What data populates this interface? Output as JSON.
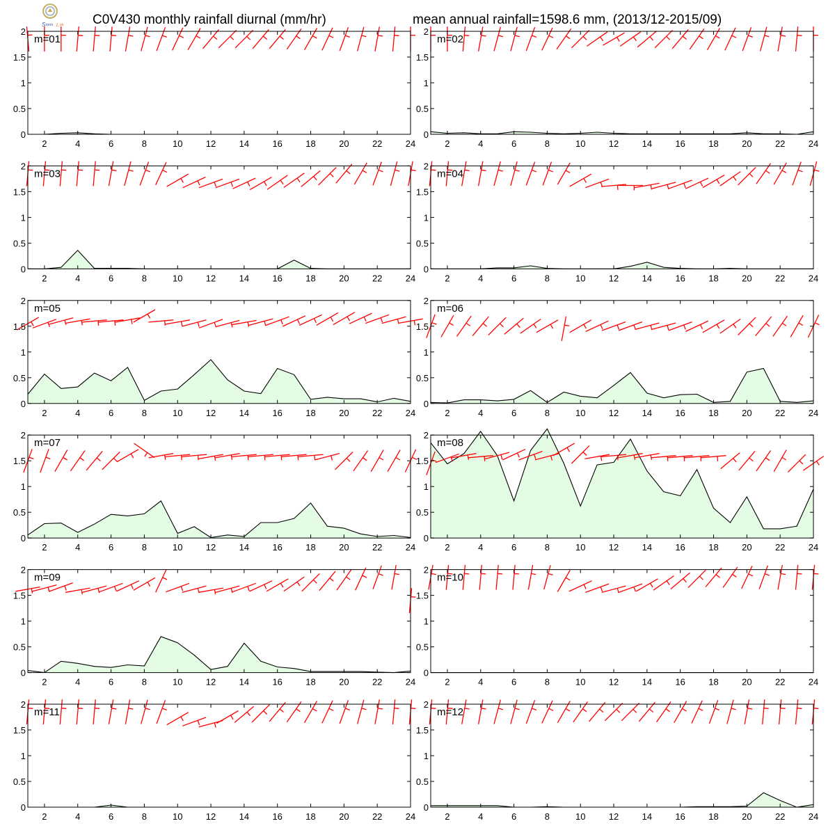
{
  "header": {
    "title_left": "C0V430 monthly rainfall diurnal (mm/hr)",
    "title_right": "mean annual rainfall=1598.6 mm, (2013/12-2015/09)"
  },
  "colors": {
    "rain_fill": "#e4fce4",
    "rain_line": "#000000",
    "wind_barb": "#ff0000"
  },
  "chart_data": {
    "type": "area",
    "x_ticks": [
      2,
      4,
      6,
      8,
      10,
      12,
      14,
      16,
      18,
      20,
      22,
      24
    ],
    "y_ticks": [
      0,
      0.5,
      1,
      1.5,
      2
    ],
    "y_tick_labels": [
      "0",
      "0.5",
      "1",
      "1.5",
      "2"
    ],
    "xlim": [
      1,
      24
    ],
    "ylim": [
      0,
      2
    ],
    "hours": [
      1,
      2,
      3,
      4,
      5,
      6,
      7,
      8,
      9,
      10,
      11,
      12,
      13,
      14,
      15,
      16,
      17,
      18,
      19,
      20,
      21,
      22,
      23,
      24
    ],
    "panels": [
      {
        "label": "m=01",
        "rain": [
          0,
          0,
          0.02,
          0.03,
          0.01,
          0,
          0,
          0,
          0,
          0,
          0,
          0,
          0,
          0,
          0,
          0,
          0,
          0,
          0,
          0,
          0,
          0,
          0,
          0
        ],
        "barb_dir": [
          355,
          0,
          0,
          5,
          5,
          5,
          10,
          15,
          20,
          25,
          30,
          40,
          45,
          45,
          40,
          40,
          35,
          30,
          25,
          20,
          15,
          10,
          5,
          0
        ],
        "barb_y": [
          1.85,
          1.85,
          1.85,
          1.85,
          1.85,
          1.85,
          1.85,
          1.85,
          1.85,
          1.85,
          1.85,
          1.85,
          1.85,
          1.85,
          1.85,
          1.85,
          1.85,
          1.85,
          1.85,
          1.85,
          1.85,
          1.85,
          1.85,
          1.85
        ]
      },
      {
        "label": "m=02",
        "rain": [
          0.05,
          0.02,
          0.03,
          0.01,
          0.01,
          0.05,
          0.04,
          0.02,
          0.01,
          0.02,
          0.04,
          0.02,
          0.01,
          0.01,
          0.01,
          0.01,
          0.01,
          0.01,
          0.01,
          0.03,
          0.01,
          0.01,
          0,
          0.05
        ],
        "barb_dir": [
          0,
          0,
          5,
          10,
          15,
          15,
          20,
          25,
          35,
          45,
          55,
          60,
          55,
          50,
          45,
          40,
          35,
          30,
          25,
          20,
          15,
          10,
          5,
          0
        ],
        "barb_y": [
          1.85,
          1.85,
          1.85,
          1.85,
          1.85,
          1.85,
          1.85,
          1.85,
          1.85,
          1.85,
          1.85,
          1.85,
          1.85,
          1.85,
          1.85,
          1.85,
          1.85,
          1.85,
          1.85,
          1.85,
          1.85,
          1.85,
          1.85,
          1.85
        ]
      },
      {
        "label": "m=03",
        "rain": [
          0,
          0,
          0.03,
          0.36,
          0.01,
          0.01,
          0.01,
          0,
          0,
          0,
          0,
          0,
          0,
          0,
          0,
          0,
          0.17,
          0.01,
          0,
          0,
          0,
          0,
          0,
          0
        ],
        "barb_dir": [
          5,
          5,
          5,
          5,
          5,
          10,
          15,
          20,
          25,
          60,
          65,
          70,
          70,
          65,
          60,
          55,
          55,
          50,
          45,
          40,
          30,
          20,
          15,
          10
        ],
        "barb_y": [
          1.85,
          1.85,
          1.85,
          1.85,
          1.85,
          1.85,
          1.85,
          1.85,
          1.85,
          1.72,
          1.68,
          1.66,
          1.66,
          1.66,
          1.66,
          1.68,
          1.72,
          1.75,
          1.8,
          1.85,
          1.85,
          1.85,
          1.85,
          1.85
        ]
      },
      {
        "label": "m=04",
        "rain": [
          0,
          0,
          0,
          0,
          0.02,
          0.02,
          0.06,
          0.01,
          0,
          0,
          0,
          0,
          0.05,
          0.13,
          0.03,
          0.01,
          0,
          0,
          0.01,
          0,
          0,
          0,
          0,
          0
        ],
        "barb_dir": [
          5,
          5,
          10,
          10,
          15,
          15,
          20,
          20,
          30,
          60,
          70,
          85,
          90,
          80,
          75,
          70,
          65,
          60,
          55,
          45,
          35,
          30,
          20,
          15
        ],
        "barb_y": [
          1.85,
          1.85,
          1.85,
          1.85,
          1.85,
          1.85,
          1.85,
          1.85,
          1.85,
          1.72,
          1.66,
          1.62,
          1.62,
          1.62,
          1.62,
          1.64,
          1.66,
          1.7,
          1.75,
          1.8,
          1.85,
          1.85,
          1.85,
          1.85
        ]
      },
      {
        "label": "m=05",
        "rain": [
          0.18,
          0.57,
          0.29,
          0.32,
          0.59,
          0.44,
          0.7,
          0.06,
          0.24,
          0.28,
          0.56,
          0.85,
          0.46,
          0.24,
          0.19,
          0.68,
          0.56,
          0.08,
          0.12,
          0.09,
          0.09,
          0.03,
          0.1,
          0.04
        ],
        "barb_dir": [
          60,
          70,
          75,
          80,
          85,
          85,
          80,
          60,
          85,
          80,
          75,
          70,
          75,
          80,
          75,
          70,
          65,
          65,
          60,
          60,
          65,
          70,
          75,
          80
        ],
        "barb_y": [
          1.55,
          1.55,
          1.6,
          1.6,
          1.6,
          1.6,
          1.62,
          1.7,
          1.6,
          1.58,
          1.56,
          1.55,
          1.55,
          1.57,
          1.58,
          1.6,
          1.6,
          1.62,
          1.64,
          1.65,
          1.65,
          1.64,
          1.62,
          1.6
        ]
      },
      {
        "label": "m=06",
        "rain": [
          0.02,
          0.01,
          0.07,
          0.07,
          0.05,
          0.08,
          0.25,
          0.02,
          0.22,
          0.14,
          0.11,
          0.35,
          0.6,
          0.2,
          0.11,
          0.17,
          0.18,
          0.02,
          0.04,
          0.61,
          0.68,
          0.04,
          0.02,
          0.05
        ],
        "barb_dir": [
          20,
          30,
          35,
          40,
          45,
          50,
          55,
          60,
          10,
          60,
          65,
          70,
          70,
          75,
          75,
          70,
          65,
          60,
          55,
          45,
          40,
          35,
          30,
          25
        ],
        "barb_y": [
          1.5,
          1.5,
          1.5,
          1.5,
          1.5,
          1.5,
          1.5,
          1.5,
          1.45,
          1.5,
          1.5,
          1.5,
          1.5,
          1.5,
          1.5,
          1.5,
          1.5,
          1.5,
          1.5,
          1.5,
          1.5,
          1.5,
          1.5,
          1.5
        ]
      },
      {
        "label": "m=07",
        "rain": [
          0.06,
          0.28,
          0.29,
          0.11,
          0.27,
          0.46,
          0.43,
          0.47,
          0.72,
          0.09,
          0.22,
          0.01,
          0.06,
          0.03,
          0.3,
          0.3,
          0.38,
          0.68,
          0.23,
          0.19,
          0.08,
          0.03,
          0.05,
          0.01
        ],
        "barb_dir": [
          20,
          20,
          30,
          35,
          40,
          45,
          60,
          125,
          80,
          85,
          85,
          80,
          80,
          85,
          85,
          85,
          85,
          85,
          75,
          45,
          35,
          30,
          30,
          25
        ],
        "barb_y": [
          1.5,
          1.5,
          1.5,
          1.5,
          1.5,
          1.5,
          1.6,
          1.7,
          1.6,
          1.6,
          1.6,
          1.58,
          1.6,
          1.6,
          1.6,
          1.6,
          1.6,
          1.6,
          1.58,
          1.5,
          1.5,
          1.5,
          1.5,
          1.5
        ]
      },
      {
        "label": "m=08",
        "rain": [
          1.85,
          1.44,
          1.64,
          2.07,
          1.6,
          0.72,
          1.7,
          2.13,
          1.45,
          0.62,
          1.42,
          1.47,
          1.92,
          1.3,
          0.9,
          0.82,
          1.33,
          0.58,
          0.3,
          0.8,
          0.18,
          0.18,
          0.23,
          0.95
        ],
        "barb_dir": [
          20,
          70,
          80,
          85,
          75,
          65,
          70,
          75,
          60,
          45,
          80,
          85,
          80,
          80,
          85,
          85,
          85,
          85,
          50,
          40,
          35,
          30,
          45,
          55
        ],
        "barb_y": [
          1.45,
          1.55,
          1.6,
          1.58,
          1.6,
          1.62,
          1.6,
          1.58,
          1.72,
          1.62,
          1.58,
          1.6,
          1.6,
          1.6,
          1.58,
          1.58,
          1.58,
          1.58,
          1.5,
          1.5,
          1.5,
          1.5,
          1.45,
          1.45
        ]
      },
      {
        "label": "m=09",
        "rain": [
          0.04,
          0,
          0.22,
          0.18,
          0.12,
          0.1,
          0.15,
          0.13,
          0.7,
          0.58,
          0.34,
          0.06,
          0.12,
          0.57,
          0.22,
          0.11,
          0.08,
          0.02,
          0.02,
          0.02,
          0.02,
          0.01,
          0,
          0.03
        ],
        "barb_dir": [
          80,
          75,
          70,
          80,
          75,
          70,
          65,
          60,
          25,
          70,
          75,
          80,
          75,
          70,
          65,
          60,
          55,
          45,
          40,
          35,
          25,
          20,
          10,
          5
        ],
        "barb_y": [
          1.62,
          1.64,
          1.66,
          1.6,
          1.62,
          1.65,
          1.68,
          1.72,
          1.78,
          1.65,
          1.62,
          1.6,
          1.62,
          1.65,
          1.68,
          1.7,
          1.72,
          1.75,
          1.78,
          1.8,
          1.82,
          1.85,
          1.85,
          1.4
        ]
      },
      {
        "label": "m=10",
        "rain": [
          0,
          0,
          0,
          0,
          0,
          0,
          0,
          0,
          0,
          0,
          0,
          0,
          0,
          0,
          0,
          0,
          0,
          0,
          0,
          0,
          0,
          0,
          0,
          0
        ],
        "barb_dir": [
          10,
          5,
          5,
          5,
          5,
          5,
          10,
          15,
          30,
          65,
          70,
          75,
          70,
          60,
          55,
          50,
          45,
          40,
          35,
          25,
          20,
          10,
          5,
          5
        ],
        "barb_y": [
          1.85,
          1.85,
          1.85,
          1.85,
          1.85,
          1.85,
          1.85,
          1.85,
          1.78,
          1.68,
          1.64,
          1.62,
          1.64,
          1.7,
          1.74,
          1.78,
          1.82,
          1.85,
          1.85,
          1.85,
          1.85,
          1.85,
          1.85,
          1.85
        ]
      },
      {
        "label": "m=11",
        "rain": [
          0,
          0,
          0,
          0,
          0,
          0.04,
          0,
          0,
          0,
          0,
          0,
          0,
          0,
          0,
          0,
          0,
          0,
          0,
          0,
          0,
          0,
          0,
          0,
          0
        ],
        "barb_dir": [
          5,
          5,
          5,
          5,
          5,
          10,
          10,
          15,
          20,
          60,
          70,
          75,
          60,
          50,
          45,
          40,
          35,
          30,
          25,
          20,
          15,
          10,
          5,
          5
        ],
        "barb_y": [
          1.85,
          1.85,
          1.85,
          1.85,
          1.85,
          1.85,
          1.85,
          1.85,
          1.85,
          1.72,
          1.66,
          1.62,
          1.75,
          1.8,
          1.82,
          1.85,
          1.85,
          1.85,
          1.85,
          1.85,
          1.85,
          1.85,
          1.85,
          1.85
        ]
      },
      {
        "label": "m=12",
        "rain": [
          0.03,
          0.03,
          0.03,
          0.03,
          0.03,
          0,
          0,
          0.01,
          0,
          0,
          0,
          0,
          0,
          0,
          0,
          0,
          0.01,
          0.01,
          0.01,
          0.02,
          0.28,
          0.13,
          0,
          0.05
        ],
        "barb_dir": [
          5,
          5,
          10,
          10,
          15,
          15,
          20,
          25,
          30,
          35,
          40,
          45,
          45,
          40,
          35,
          30,
          25,
          20,
          15,
          10,
          5,
          5,
          5,
          5
        ],
        "barb_y": [
          1.85,
          1.85,
          1.85,
          1.85,
          1.85,
          1.85,
          1.85,
          1.85,
          1.85,
          1.85,
          1.85,
          1.85,
          1.85,
          1.85,
          1.85,
          1.85,
          1.85,
          1.85,
          1.85,
          1.85,
          1.85,
          1.85,
          1.85,
          1.85
        ]
      }
    ]
  }
}
